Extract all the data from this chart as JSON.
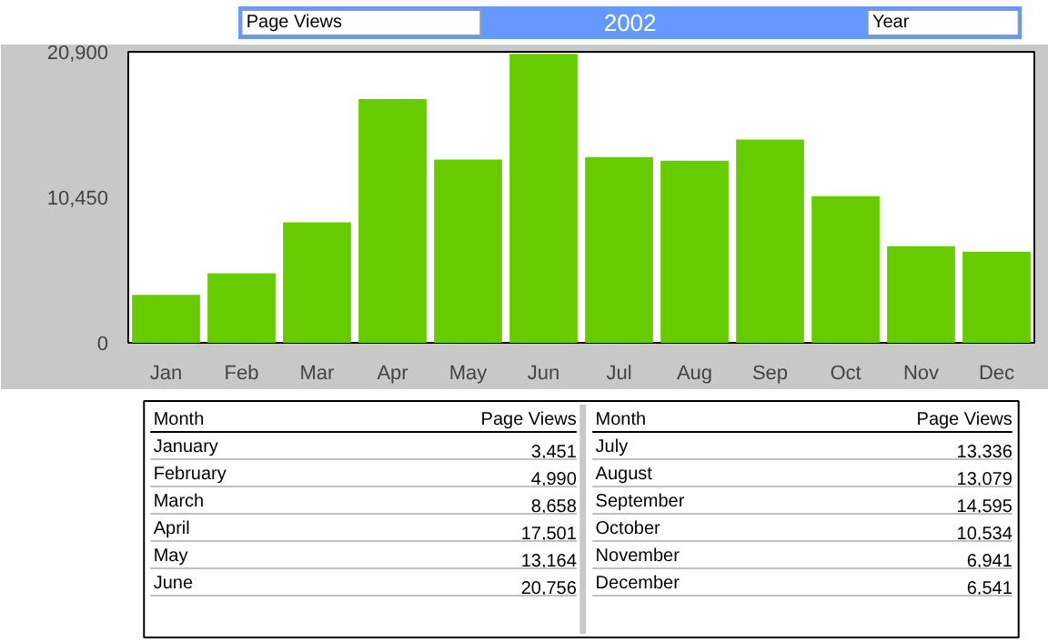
{
  "chart_data": {
    "type": "bar",
    "title": "2002",
    "categories": [
      "Jan",
      "Feb",
      "Mar",
      "Apr",
      "May",
      "Jun",
      "Jul",
      "Aug",
      "Sep",
      "Oct",
      "Nov",
      "Dec"
    ],
    "values": [
      3451,
      4990,
      8658,
      17501,
      13164,
      20756,
      13336,
      13079,
      14595,
      10534,
      6941,
      6541
    ],
    "color": "#66cc00",
    "ylim": [
      0,
      20900
    ],
    "yticks": [
      0,
      {
        "value": 10450,
        "label": "10,450"
      },
      {
        "value": 20900,
        "label": "20,900"
      }
    ],
    "grid": false,
    "annotations": [
      "Page Views",
      "Year",
      "Month",
      "Page Views",
      "January",
      "February",
      "March",
      "April",
      "May",
      "June",
      "July",
      "August",
      "September",
      "October",
      "November",
      "December",
      "3,451",
      "4,990",
      "8,658",
      "17,501",
      "13,164",
      "20,756",
      "13,336",
      "13,079",
      "14,595",
      "10,534",
      "6,941",
      "6,541"
    ]
  }
}
